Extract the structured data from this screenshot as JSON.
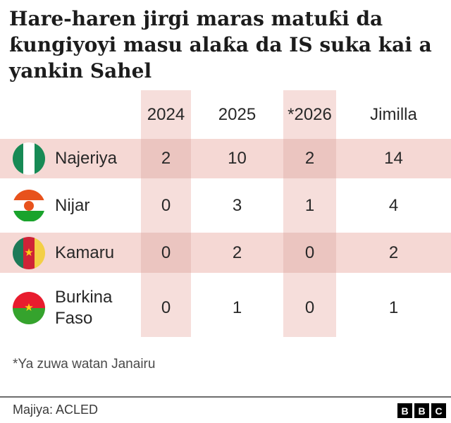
{
  "title": "Hare-haren jirgi maras matuƙi da ƙungiyoyi masu alaƙa da IS suka kai a yankin Sahel",
  "table": {
    "columns": [
      "2024",
      "2025",
      "*2026",
      "Jimilla"
    ],
    "rows": [
      {
        "country": "Najeriya",
        "flag": "nigeria-flag",
        "values": [
          "2",
          "10",
          "2",
          "14"
        ]
      },
      {
        "country": "Nijar",
        "flag": "niger-flag",
        "values": [
          "0",
          "3",
          "1",
          "4"
        ]
      },
      {
        "country": "Kamaru",
        "flag": "cameroon-flag",
        "values": [
          "0",
          "2",
          "0",
          "2"
        ]
      },
      {
        "country": "Burkina Faso",
        "flag": "burkina-faso-flag",
        "values": [
          "0",
          "1",
          "0",
          "1"
        ]
      }
    ]
  },
  "footnote": "*Ya zuwa watan Janairu",
  "source": "Majiya: ACLED",
  "logo": {
    "letters": [
      "B",
      "B",
      "C"
    ]
  },
  "colors": {
    "column_band": "#f6dedb",
    "row_stripe": "#f5d8d4",
    "stripe_overlap": "#ebc5c0",
    "text": "#282828",
    "footnote_text": "#4a4a4a",
    "divider": "#6e6e6e"
  },
  "chart_data": {
    "type": "table",
    "title": "Hare-haren jirgi maras matuƙi da ƙungiyoyi masu alaƙa da IS suka kai a yankin Sahel",
    "categories": [
      "2024",
      "2025",
      "*2026",
      "Jimilla"
    ],
    "series": [
      {
        "name": "Najeriya",
        "values": [
          2,
          10,
          2,
          14
        ]
      },
      {
        "name": "Nijar",
        "values": [
          0,
          3,
          1,
          4
        ]
      },
      {
        "name": "Kamaru",
        "values": [
          0,
          2,
          0,
          2
        ]
      },
      {
        "name": "Burkina Faso",
        "values": [
          0,
          1,
          0,
          1
        ]
      }
    ],
    "highlighted_columns": [
      "2024",
      "*2026"
    ],
    "footnote": "*Ya zuwa watan Janairu",
    "source": "Majiya: ACLED"
  }
}
